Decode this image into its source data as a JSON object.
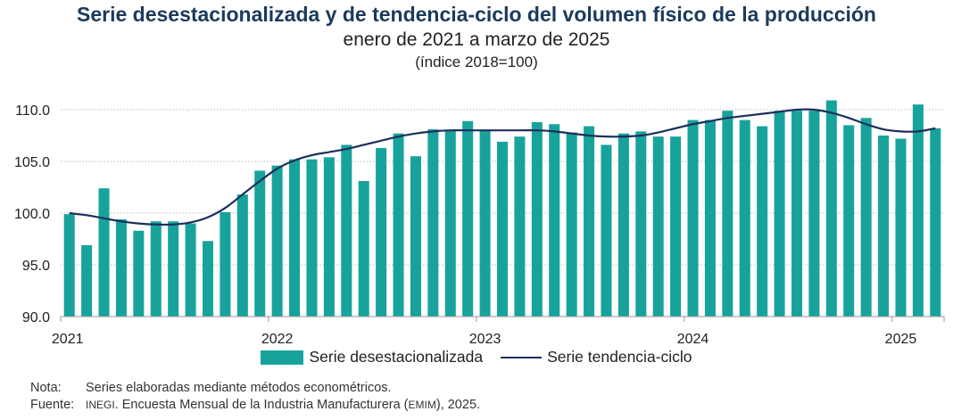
{
  "title": "Serie desestacionalizada y de tendencia-ciclo del volumen físico de la producción",
  "subtitle": "enero de 2021 a marzo de 2025",
  "subtitle2": "(índice 2018=100)",
  "legend": {
    "bars": "Serie desestacionalizada",
    "line": "Serie tendencia-ciclo"
  },
  "notes": {
    "nota_label": "Nota:",
    "nota_text": "Series elaboradas mediante métodos econométricos.",
    "fuente_label": "Fuente:",
    "fuente_org": "INEGI",
    "fuente_mid": ". Encuesta Mensual de la Industria Manufacturera (",
    "fuente_abbr": "EMIM",
    "fuente_end": "), 2025."
  },
  "colors": {
    "bars": "#17a39c",
    "line": "#1c2f5c",
    "title": "#1b3a5c",
    "grid": "#bdbdbd"
  },
  "chart_data": {
    "type": "bar",
    "title": "Serie desestacionalizada y de tendencia-ciclo del volumen físico de la producción",
    "xlabel": "",
    "ylabel": "",
    "ylim": [
      90,
      110
    ],
    "yticks": [
      90,
      95,
      100,
      105,
      110
    ],
    "ytick_labels": [
      "90.0",
      "95.0",
      "100.0",
      "105.0",
      "110.0"
    ],
    "xtick_labels": [
      "2021",
      "2022",
      "2023",
      "2024",
      "2025"
    ],
    "xtick_category_index": [
      0,
      12,
      24,
      36,
      48
    ],
    "grid": true,
    "legend_position": "bottom",
    "categories": [
      "2021-01",
      "2021-02",
      "2021-03",
      "2021-04",
      "2021-05",
      "2021-06",
      "2021-07",
      "2021-08",
      "2021-09",
      "2021-10",
      "2021-11",
      "2021-12",
      "2022-01",
      "2022-02",
      "2022-03",
      "2022-04",
      "2022-05",
      "2022-06",
      "2022-07",
      "2022-08",
      "2022-09",
      "2022-10",
      "2022-11",
      "2022-12",
      "2023-01",
      "2023-02",
      "2023-03",
      "2023-04",
      "2023-05",
      "2023-06",
      "2023-07",
      "2023-08",
      "2023-09",
      "2023-10",
      "2023-11",
      "2023-12",
      "2024-01",
      "2024-02",
      "2024-03",
      "2024-04",
      "2024-05",
      "2024-06",
      "2024-07",
      "2024-08",
      "2024-09",
      "2024-10",
      "2024-11",
      "2024-12",
      "2025-01",
      "2025-02",
      "2025-03"
    ],
    "series": [
      {
        "name": "Serie desestacionalizada",
        "type": "bar",
        "values": [
          99.9,
          96.9,
          102.4,
          99.4,
          98.3,
          99.2,
          99.2,
          99.0,
          97.3,
          100.1,
          101.8,
          104.1,
          104.6,
          105.2,
          105.2,
          105.4,
          106.6,
          103.1,
          106.3,
          107.7,
          105.5,
          108.1,
          108.0,
          108.9,
          108.0,
          106.9,
          107.4,
          108.8,
          108.6,
          107.8,
          108.4,
          106.6,
          107.7,
          107.9,
          107.4,
          107.4,
          109.0,
          109.0,
          109.9,
          109.0,
          108.4,
          109.9,
          109.9,
          109.9,
          110.9,
          108.5,
          109.2,
          107.5,
          107.2,
          110.5,
          108.2
        ]
      },
      {
        "name": "Serie tendencia-ciclo",
        "type": "line",
        "values": [
          100.0,
          99.8,
          99.5,
          99.2,
          99.0,
          98.9,
          98.9,
          99.1,
          99.6,
          100.5,
          101.8,
          103.1,
          104.3,
          105.1,
          105.6,
          105.9,
          106.2,
          106.6,
          107.0,
          107.4,
          107.7,
          107.9,
          108.0,
          108.0,
          108.0,
          108.0,
          108.0,
          108.0,
          107.9,
          107.7,
          107.5,
          107.4,
          107.4,
          107.5,
          107.8,
          108.2,
          108.6,
          108.9,
          109.2,
          109.4,
          109.6,
          109.8,
          110.0,
          110.0,
          109.7,
          109.2,
          108.6,
          108.1,
          107.9,
          107.9,
          108.2
        ]
      }
    ]
  }
}
